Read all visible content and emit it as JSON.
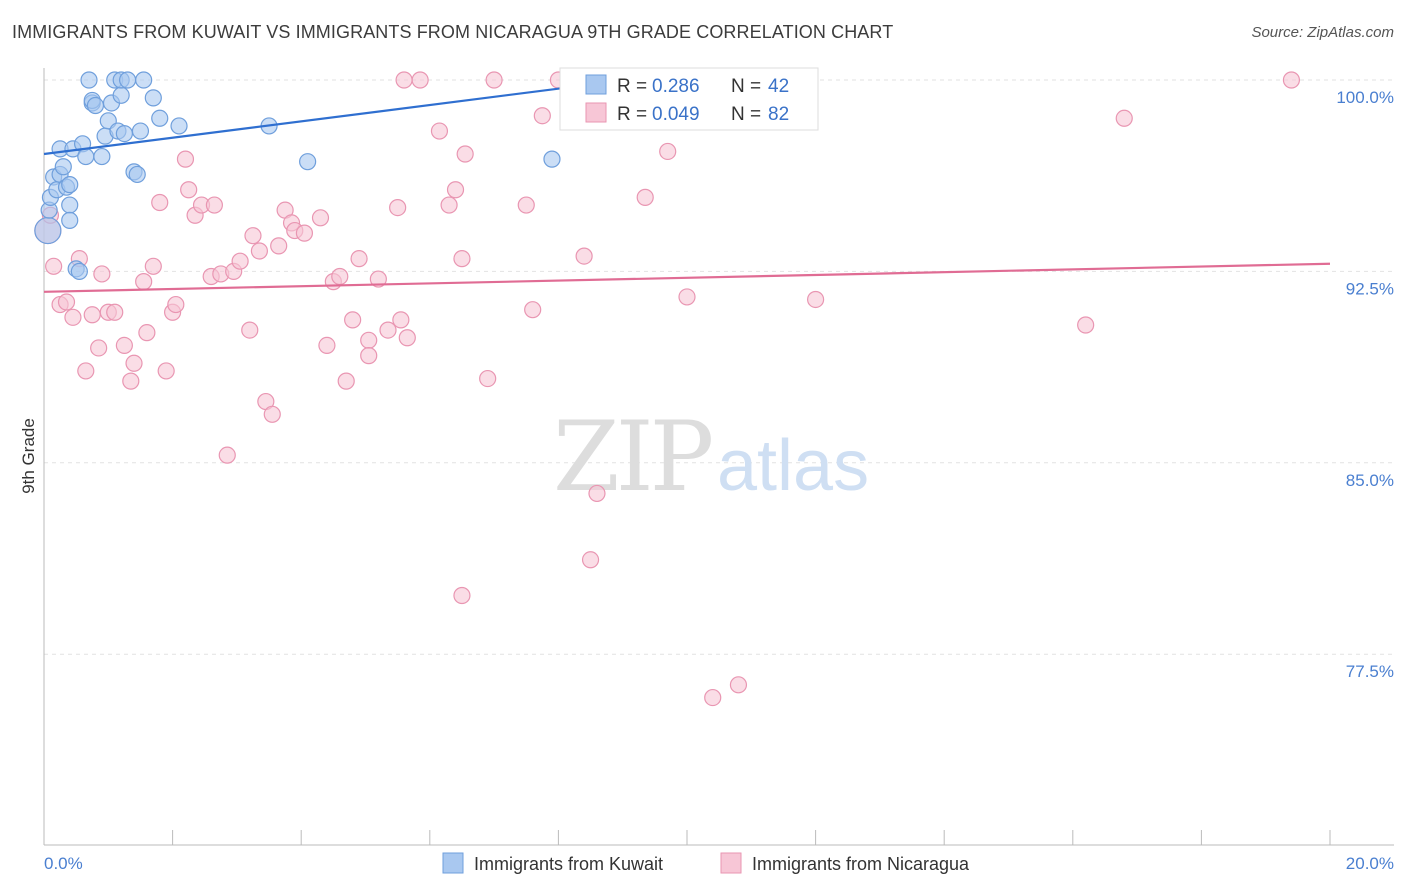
{
  "title": "IMMIGRANTS FROM KUWAIT VS IMMIGRANTS FROM NICARAGUA 9TH GRADE CORRELATION CHART",
  "source": "Source: ZipAtlas.com",
  "watermark": {
    "zip": "ZIP",
    "atlas": "atlas"
  },
  "colors": {
    "kuwait_fill": "#a9c8f0",
    "kuwait_stroke": "#6f9fdc",
    "kuwait_line": "#2f6fd0",
    "nicaragua_fill": "#f7c6d6",
    "nicaragua_stroke": "#e996b2",
    "nicaragua_line": "#e06c94",
    "tick_text": "#4a7fd0"
  },
  "legend": {
    "kuwait": {
      "r_label": "R = ",
      "r_value": "0.286",
      "n_label": "N = ",
      "n_value": "42"
    },
    "nicaragua": {
      "r_label": "R = ",
      "r_value": "0.049",
      "n_label": "N = ",
      "n_value": "82"
    }
  },
  "chart_data": {
    "type": "scatter",
    "title": "IMMIGRANTS FROM KUWAIT VS IMMIGRANTS FROM NICARAGUA 9TH GRADE CORRELATION CHART",
    "xlabel": "",
    "ylabel": "9th Grade",
    "xlim": [
      0,
      20
    ],
    "ylim": [
      70.0,
      101.0
    ],
    "x_tick_labels": [
      "0.0%",
      "20.0%"
    ],
    "y_ticks": [
      100.0,
      92.5,
      85.0,
      77.5
    ],
    "y_tick_labels": [
      "100.0%",
      "92.5%",
      "85.0%",
      "77.5%"
    ],
    "grid": true,
    "legend_position": "top-center",
    "series": [
      {
        "name": "Immigrants from Kuwait",
        "trend": {
          "x": [
            0.0,
            10.0
          ],
          "y": [
            97.1,
            100.3
          ]
        },
        "points": [
          [
            0.06,
            94.1
          ],
          [
            0.08,
            94.9
          ],
          [
            0.1,
            95.4
          ],
          [
            0.15,
            96.2
          ],
          [
            0.2,
            95.7
          ],
          [
            0.25,
            97.3
          ],
          [
            0.25,
            96.3
          ],
          [
            0.3,
            96.6
          ],
          [
            0.35,
            95.8
          ],
          [
            0.4,
            95.9
          ],
          [
            0.4,
            95.1
          ],
          [
            0.4,
            94.5
          ],
          [
            0.45,
            97.3
          ],
          [
            0.5,
            92.6
          ],
          [
            0.55,
            92.5
          ],
          [
            0.6,
            97.5
          ],
          [
            0.65,
            97.0
          ],
          [
            0.7,
            100.0
          ],
          [
            0.75,
            99.1
          ],
          [
            0.75,
            99.2
          ],
          [
            0.8,
            99.0
          ],
          [
            0.9,
            97.0
          ],
          [
            0.95,
            97.8
          ],
          [
            1.0,
            98.4
          ],
          [
            1.05,
            99.1
          ],
          [
            1.1,
            100.0
          ],
          [
            1.15,
            98.0
          ],
          [
            1.2,
            99.4
          ],
          [
            1.2,
            100.0
          ],
          [
            1.25,
            97.9
          ],
          [
            1.3,
            100.0
          ],
          [
            1.4,
            96.4
          ],
          [
            1.45,
            96.3
          ],
          [
            1.5,
            98.0
          ],
          [
            1.55,
            100.0
          ],
          [
            1.7,
            99.3
          ],
          [
            1.8,
            98.5
          ],
          [
            2.1,
            98.2
          ],
          [
            3.5,
            98.2
          ],
          [
            4.1,
            96.8
          ],
          [
            7.9,
            96.9
          ],
          [
            9.8,
            100.0
          ]
        ]
      },
      {
        "name": "Immigrants from Nicaragua",
        "trend": {
          "x": [
            0.0,
            20.0
          ],
          "y": [
            91.7,
            92.8
          ]
        },
        "points": [
          [
            0.06,
            94.1
          ],
          [
            0.1,
            94.7
          ],
          [
            0.15,
            92.7
          ],
          [
            0.25,
            91.2
          ],
          [
            0.35,
            91.3
          ],
          [
            0.45,
            90.7
          ],
          [
            0.55,
            93.0
          ],
          [
            0.65,
            88.6
          ],
          [
            0.75,
            90.8
          ],
          [
            0.85,
            89.5
          ],
          [
            0.9,
            92.4
          ],
          [
            1.0,
            90.9
          ],
          [
            1.1,
            90.9
          ],
          [
            1.25,
            89.6
          ],
          [
            1.35,
            88.2
          ],
          [
            1.4,
            88.9
          ],
          [
            1.55,
            92.1
          ],
          [
            1.6,
            90.1
          ],
          [
            1.7,
            92.7
          ],
          [
            1.8,
            95.2
          ],
          [
            1.9,
            88.6
          ],
          [
            2.0,
            90.9
          ],
          [
            2.05,
            91.2
          ],
          [
            2.2,
            96.9
          ],
          [
            2.25,
            95.7
          ],
          [
            2.35,
            94.7
          ],
          [
            2.45,
            95.1
          ],
          [
            2.6,
            92.3
          ],
          [
            2.65,
            95.1
          ],
          [
            2.75,
            92.4
          ],
          [
            2.85,
            85.3
          ],
          [
            2.95,
            92.5
          ],
          [
            3.05,
            92.9
          ],
          [
            3.2,
            90.2
          ],
          [
            3.25,
            93.9
          ],
          [
            3.35,
            93.3
          ],
          [
            3.45,
            87.4
          ],
          [
            3.55,
            86.9
          ],
          [
            3.65,
            93.5
          ],
          [
            3.75,
            94.9
          ],
          [
            3.85,
            94.4
          ],
          [
            3.9,
            94.1
          ],
          [
            4.05,
            94.0
          ],
          [
            4.3,
            94.6
          ],
          [
            4.4,
            89.6
          ],
          [
            4.5,
            92.1
          ],
          [
            4.6,
            92.3
          ],
          [
            4.7,
            88.2
          ],
          [
            4.8,
            90.6
          ],
          [
            4.9,
            93.0
          ],
          [
            5.05,
            89.8
          ],
          [
            5.05,
            89.2
          ],
          [
            5.2,
            92.2
          ],
          [
            5.35,
            90.2
          ],
          [
            5.5,
            95.0
          ],
          [
            5.55,
            90.6
          ],
          [
            5.65,
            89.9
          ],
          [
            5.6,
            100.0
          ],
          [
            5.85,
            100.0
          ],
          [
            6.15,
            98.0
          ],
          [
            6.3,
            95.1
          ],
          [
            6.4,
            95.7
          ],
          [
            6.5,
            93.0
          ],
          [
            6.5,
            79.8
          ],
          [
            6.55,
            97.1
          ],
          [
            6.9,
            88.3
          ],
          [
            7.0,
            100.0
          ],
          [
            7.5,
            95.1
          ],
          [
            7.6,
            91.0
          ],
          [
            7.75,
            98.6
          ],
          [
            8.0,
            100.0
          ],
          [
            8.4,
            93.1
          ],
          [
            8.5,
            81.2
          ],
          [
            8.6,
            83.8
          ],
          [
            9.35,
            95.4
          ],
          [
            9.7,
            97.2
          ],
          [
            10.0,
            91.5
          ],
          [
            10.4,
            75.8
          ],
          [
            10.8,
            76.3
          ],
          [
            12.0,
            91.4
          ],
          [
            16.2,
            90.4
          ],
          [
            16.8,
            98.5
          ],
          [
            19.4,
            100.0
          ]
        ]
      }
    ]
  },
  "bottom_legend": {
    "kuwait": "Immigrants from Kuwait",
    "nicaragua": "Immigrants from Nicaragua"
  }
}
